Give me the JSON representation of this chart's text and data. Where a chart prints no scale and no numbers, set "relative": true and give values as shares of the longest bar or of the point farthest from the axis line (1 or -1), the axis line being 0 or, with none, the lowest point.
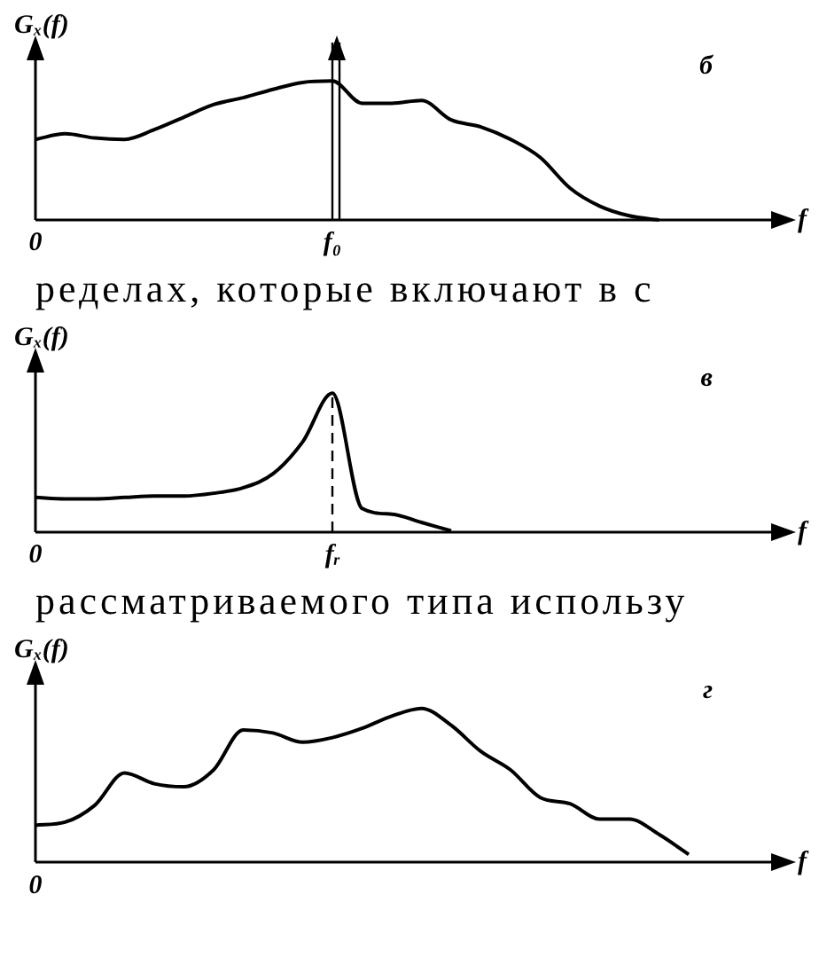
{
  "chart_data": [
    {
      "type": "line",
      "title": "б",
      "xlabel": "f",
      "ylabel": "Gₓ(f)",
      "relative": true,
      "marker": "none",
      "color": "#000000",
      "categories": [
        "0",
        null,
        null,
        null,
        null,
        null,
        null,
        null,
        null,
        null,
        "f₀",
        null,
        null,
        null,
        null,
        null,
        null,
        null,
        null,
        null,
        null,
        null,
        null,
        null,
        null
      ],
      "values": [
        0.58,
        0.62,
        0.59,
        0.58,
        0.65,
        0.74,
        0.83,
        0.88,
        0.94,
        0.99,
        1,
        0.84,
        0.84,
        0.86,
        0.72,
        0.67,
        0.58,
        0.45,
        0.23,
        0.1,
        0.03,
        0,
        null,
        null,
        null
      ],
      "ref_lines": [
        {
          "axis": "x",
          "value": "f₀",
          "line_style": "solid"
        }
      ],
      "annotations": [
        "ределах, которые включают в с"
      ]
    },
    {
      "type": "line",
      "title": "в",
      "xlabel": "f",
      "ylabel": "Gₓ(f)",
      "relative": true,
      "marker": "none",
      "color": "#000000",
      "categories": [
        "0",
        null,
        null,
        null,
        null,
        null,
        null,
        null,
        null,
        null,
        "fᵣ",
        null,
        null,
        null,
        null,
        null,
        null,
        null,
        null,
        null,
        null,
        null,
        null,
        null,
        null
      ],
      "values": [
        0.25,
        0.24,
        0.24,
        0.25,
        0.26,
        0.26,
        0.28,
        0.32,
        0.42,
        0.65,
        1,
        0.17,
        0.13,
        0.07,
        0.01,
        null,
        null,
        null,
        null,
        null,
        null,
        null,
        null,
        null,
        null
      ],
      "ref_lines": [
        {
          "axis": "x",
          "value": "fᵣ",
          "line_style": "dashed"
        }
      ],
      "annotations": [
        "рассматриваемого типа использу"
      ]
    },
    {
      "type": "line",
      "title": "г",
      "xlabel": "f",
      "ylabel": "Gₓ(f)",
      "relative": true,
      "marker": "none",
      "color": "#000000",
      "categories": [
        null,
        null,
        null,
        null,
        null,
        null,
        null,
        null,
        null,
        null,
        null,
        null,
        null,
        null,
        null,
        null,
        null,
        null,
        null,
        null,
        null,
        null,
        null,
        null,
        null
      ],
      "annotations": [
        "0"
      ],
      "values": [
        0.24,
        0.26,
        0.37,
        0.58,
        0.51,
        0.49,
        0.6,
        0.86,
        0.84,
        0.78,
        0.81,
        0.87,
        0.95,
        1,
        0.89,
        0.72,
        0.6,
        0.42,
        0.38,
        0.28,
        0.28,
        0.18,
        0.05,
        null,
        null
      ]
    }
  ]
}
